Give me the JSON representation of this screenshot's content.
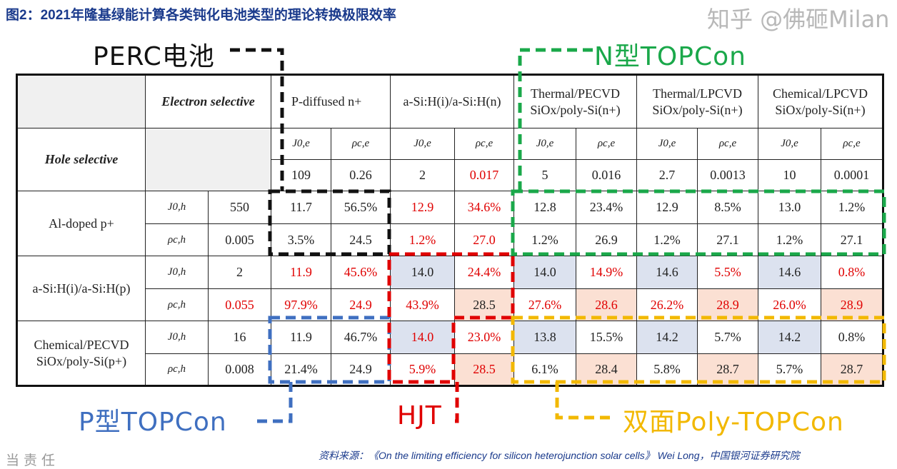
{
  "title": "图2：2021年隆基绿能计算各类钝化电池类型的理论转换极限效率",
  "header": {
    "corner": "",
    "electron_selective": "Electron selective",
    "hole_selective": "Hole selective",
    "columns": [
      "P-diffused n+",
      "a-Si:H(i)/a-Si:H(n)",
      "Thermal/PECVD SiOx/poly-Si(n+)",
      "Thermal/LPCVD SiOx/poly-Si(n+)",
      "Chemical/LPCVD SiOx/poly-Si(n+)"
    ],
    "sub": [
      "J0,e",
      "ρc,e"
    ],
    "values": [
      {
        "v": "109",
        "c": "#222"
      },
      {
        "v": "0.26",
        "c": "#222"
      },
      {
        "v": "2",
        "c": "#222"
      },
      {
        "v": "0.017",
        "c": "#e00000"
      },
      {
        "v": "5",
        "c": "#222"
      },
      {
        "v": "0.016",
        "c": "#222"
      },
      {
        "v": "2.7",
        "c": "#222"
      },
      {
        "v": "0.0013",
        "c": "#222"
      },
      {
        "v": "10",
        "c": "#222"
      },
      {
        "v": "0.0001",
        "c": "#222"
      }
    ]
  },
  "rows": [
    {
      "name": "Al-doped p+",
      "lines": [
        {
          "sym": "J0,h",
          "val": {
            "v": "550",
            "c": "#222"
          },
          "cells": [
            [
              "11.7",
              "#222",
              ""
            ],
            [
              "56.5%",
              "#222",
              ""
            ],
            [
              "12.9",
              "#e00000",
              ""
            ],
            [
              "34.6%",
              "#e00000",
              ""
            ],
            [
              "12.8",
              "#222",
              ""
            ],
            [
              "23.4%",
              "#222",
              ""
            ],
            [
              "12.9",
              "#222",
              ""
            ],
            [
              "8.5%",
              "#222",
              ""
            ],
            [
              "13.0",
              "#222",
              ""
            ],
            [
              "1.2%",
              "#222",
              ""
            ]
          ]
        },
        {
          "sym": "ρc,h",
          "val": {
            "v": "0.005",
            "c": "#222"
          },
          "cells": [
            [
              "3.5%",
              "#222",
              ""
            ],
            [
              "24.5",
              "#222",
              ""
            ],
            [
              "1.2%",
              "#e00000",
              ""
            ],
            [
              "27.0",
              "#e00000",
              ""
            ],
            [
              "1.2%",
              "#222",
              ""
            ],
            [
              "26.9",
              "#222",
              ""
            ],
            [
              "1.2%",
              "#222",
              ""
            ],
            [
              "27.1",
              "#222",
              ""
            ],
            [
              "1.2%",
              "#222",
              ""
            ],
            [
              "27.1",
              "#222",
              ""
            ]
          ]
        }
      ]
    },
    {
      "name": "a-Si:H(i)/a-Si:H(p)",
      "lines": [
        {
          "sym": "J0,h",
          "val": {
            "v": "2",
            "c": "#222"
          },
          "cells": [
            [
              "11.9",
              "#e00000",
              ""
            ],
            [
              "45.6%",
              "#e00000",
              ""
            ],
            [
              "14.0",
              "#222",
              "#dce2ef"
            ],
            [
              "24.4%",
              "#e00000",
              ""
            ],
            [
              "14.0",
              "#222",
              "#dce2ef"
            ],
            [
              "14.9%",
              "#e00000",
              ""
            ],
            [
              "14.6",
              "#222",
              "#dce2ef"
            ],
            [
              "5.5%",
              "#e00000",
              ""
            ],
            [
              "14.6",
              "#222",
              "#dce2ef"
            ],
            [
              "0.8%",
              "#e00000",
              ""
            ]
          ]
        },
        {
          "sym": "ρc,h",
          "val": {
            "v": "0.055",
            "c": "#e00000"
          },
          "cells": [
            [
              "97.9%",
              "#e00000",
              ""
            ],
            [
              "24.9",
              "#e00000",
              ""
            ],
            [
              "43.9%",
              "#e00000",
              ""
            ],
            [
              "28.5",
              "#222",
              "#fbe0d3"
            ],
            [
              "27.6%",
              "#e00000",
              ""
            ],
            [
              "28.6",
              "#e00000",
              "#fbe0d3"
            ],
            [
              "26.2%",
              "#e00000",
              ""
            ],
            [
              "28.9",
              "#e00000",
              "#fbe0d3"
            ],
            [
              "26.0%",
              "#e00000",
              ""
            ],
            [
              "28.9",
              "#e00000",
              "#fbe0d3"
            ]
          ]
        }
      ]
    },
    {
      "name": "Chemical/PECVD SiOx/poly-Si(p+)",
      "lines": [
        {
          "sym": "J0,h",
          "val": {
            "v": "16",
            "c": "#222"
          },
          "cells": [
            [
              "11.9",
              "#222",
              ""
            ],
            [
              "46.7%",
              "#222",
              ""
            ],
            [
              "14.0",
              "#e00000",
              "#dce2ef"
            ],
            [
              "23.0%",
              "#e00000",
              ""
            ],
            [
              "13.8",
              "#222",
              "#dce2ef"
            ],
            [
              "15.5%",
              "#222",
              ""
            ],
            [
              "14.2",
              "#222",
              "#dce2ef"
            ],
            [
              "5.7%",
              "#222",
              ""
            ],
            [
              "14.2",
              "#222",
              "#dce2ef"
            ],
            [
              "0.8%",
              "#222",
              ""
            ]
          ]
        },
        {
          "sym": "ρc,h",
          "val": {
            "v": "0.008",
            "c": "#222"
          },
          "cells": [
            [
              "21.4%",
              "#222",
              ""
            ],
            [
              "24.9",
              "#222",
              ""
            ],
            [
              "5.9%",
              "#e00000",
              ""
            ],
            [
              "28.5",
              "#e00000",
              "#fbe0d3"
            ],
            [
              "6.1%",
              "#222",
              ""
            ],
            [
              "28.4",
              "#222",
              "#fbe0d3"
            ],
            [
              "5.8%",
              "#222",
              ""
            ],
            [
              "28.7",
              "#222",
              "#fbe0d3"
            ],
            [
              "5.7%",
              "#222",
              ""
            ],
            [
              "28.7",
              "#222",
              "#fbe0d3"
            ]
          ]
        }
      ]
    }
  ],
  "annotations": {
    "perc": {
      "label": "PERC电池",
      "color": "#111111"
    },
    "ntopcon": {
      "label": "N型TOPCon",
      "color": "#1aa84a"
    },
    "ptopcon": {
      "label": "P型TOPCon",
      "color": "#3f6fc0"
    },
    "hjt": {
      "label": "HJT",
      "color": "#e00000"
    },
    "bifacial": {
      "label": "双面Poly-TOPCon",
      "color": "#f2b800"
    }
  },
  "source": "资料来源：《On the limiting efficiency for silicon heterojunction solar cells》 Wei Long，中国银河证券研究院",
  "side_text": "当责任",
  "watermark": "知乎 @佛砸Milan"
}
